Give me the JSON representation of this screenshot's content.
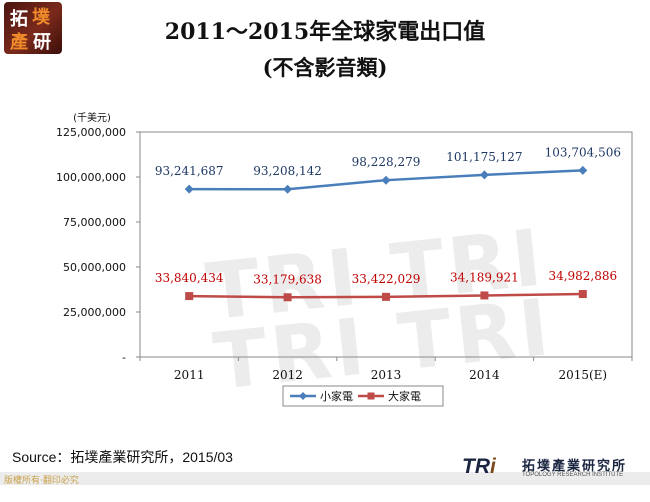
{
  "logo": {
    "chars": [
      "拓",
      "墣",
      "產",
      "研"
    ]
  },
  "title": "2011～2015年全球家電出口值",
  "subtitle": "(不含影音類)",
  "watermark": "TRI TRI TRI TRI",
  "source": "Source：拓墣產業研究所，2015/03",
  "copyright": "版權所有‧翻印必究",
  "footer_logo": {
    "mark_a": "TR",
    "mark_b": "i",
    "name_zh": "拓墣產業研究所",
    "name_en": "TOPOLOGY RESEARCH INSTITUTE"
  },
  "chart_data": {
    "type": "line",
    "unit_label": "(千美元)",
    "categories": [
      "2011",
      "2012",
      "2013",
      "2014",
      "2015(E)"
    ],
    "ylim": [
      0,
      125000000
    ],
    "yticks": [
      0,
      25000000,
      50000000,
      75000000,
      100000000,
      125000000
    ],
    "ytick_labels": [
      "-",
      "25,000,000",
      "50,000,000",
      "75,000,000",
      "100,000,000",
      "125,000,000"
    ],
    "grid": false,
    "legend_position": "bottom",
    "series": [
      {
        "name": "小家電",
        "color": "#4a7ebb",
        "label_color": "#1f3864",
        "marker": "diamond",
        "values": [
          93241687,
          93208142,
          98228279,
          101175127,
          103704506
        ],
        "labels": [
          "93,241,687",
          "93,208,142",
          "98,228,279",
          "101,175,127",
          "103,704,506"
        ]
      },
      {
        "name": "大家電",
        "color": "#be4b48",
        "label_color": "#c00000",
        "marker": "square",
        "values": [
          33840434,
          33179638,
          33422029,
          34189921,
          34982886
        ],
        "labels": [
          "33,840,434",
          "33,179,638",
          "33,422,029",
          "34,189,921",
          "34,982,886"
        ]
      }
    ]
  }
}
